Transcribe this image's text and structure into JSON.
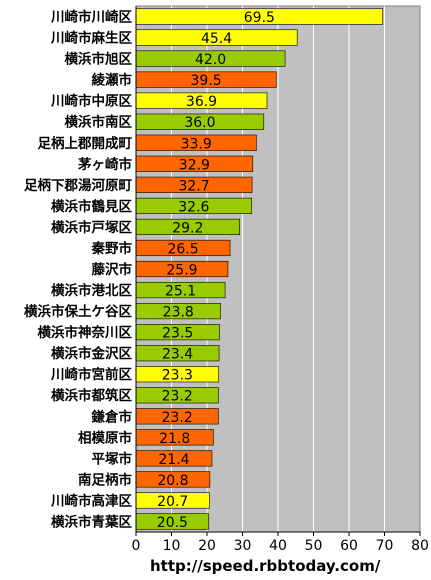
{
  "chart_data": {
    "type": "bar",
    "orientation": "horizontal",
    "categories": [
      "川崎市川崎区",
      "川崎市麻生区",
      "横浜市旭区",
      "綾瀬市",
      "川崎市中原区",
      "横浜市南区",
      "足柄上郡開成町",
      "茅ヶ崎市",
      "足柄下郡湯河原町",
      "横浜市鶴見区",
      "横浜市戸塚区",
      "秦野市",
      "藤沢市",
      "横浜市港北区",
      "横浜市保土ケ谷区",
      "横浜市神奈川区",
      "横浜市金沢区",
      "川崎市宮前区",
      "横浜市都筑区",
      "鎌倉市",
      "相模原市",
      "平塚市",
      "南足柄市",
      "川崎市高津区",
      "横浜市青葉区"
    ],
    "values": [
      69.5,
      45.4,
      42.0,
      39.5,
      36.9,
      36.0,
      33.9,
      32.9,
      32.7,
      32.6,
      29.2,
      26.5,
      25.9,
      25.1,
      23.8,
      23.5,
      23.4,
      23.3,
      23.2,
      23.2,
      21.8,
      21.4,
      20.8,
      20.7,
      20.5
    ],
    "value_labels": [
      "69.5",
      "45.4",
      "42.0",
      "39.5",
      "36.9",
      "36.0",
      "33.9",
      "32.9",
      "32.7",
      "32.6",
      "29.2",
      "26.5",
      "25.9",
      "25.1",
      "23.8",
      "23.5",
      "23.4",
      "23.3",
      "23.2",
      "23.2",
      "21.8",
      "21.4",
      "20.8",
      "20.7",
      "20.5"
    ],
    "bar_colors": [
      "#ffff00",
      "#ffff00",
      "#99cc00",
      "#ff6600",
      "#ffff00",
      "#99cc00",
      "#ff6600",
      "#ff6600",
      "#ff6600",
      "#99cc00",
      "#99cc00",
      "#ff6600",
      "#ff6600",
      "#99cc00",
      "#99cc00",
      "#99cc00",
      "#99cc00",
      "#ffff00",
      "#99cc00",
      "#ff6600",
      "#ff6600",
      "#ff6600",
      "#ff6600",
      "#ffff00",
      "#99cc00"
    ],
    "xticks": [
      0,
      10,
      20,
      30,
      40,
      50,
      60,
      70,
      80
    ],
    "xlim": [
      0,
      80
    ],
    "grid": true,
    "plot_background": "#c0c0c0",
    "title": "",
    "xlabel": "",
    "ylabel": ""
  },
  "source_text": "http://speed.rbbtoday.com/"
}
